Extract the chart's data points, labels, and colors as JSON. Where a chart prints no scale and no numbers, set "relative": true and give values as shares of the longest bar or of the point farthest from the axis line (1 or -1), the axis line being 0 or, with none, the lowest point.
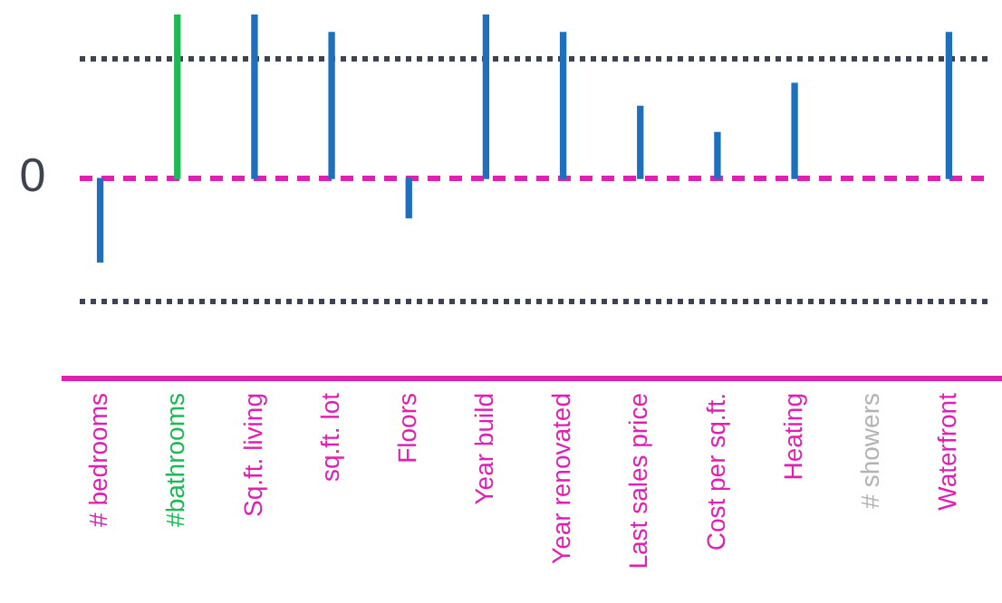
{
  "chart_data": {
    "type": "bar",
    "relative": true,
    "categories": [
      "# bedrooms",
      "#bathrooms",
      "Sq.ft. living",
      "sq.ft. lot",
      "Floors",
      "Year build",
      "Year renovated",
      "Last sales price",
      "Cost per sq.ft.",
      "Heating",
      "# showers",
      "Waterfront"
    ],
    "series": [
      {
        "color": "#1f6fbf",
        "colors": [
          "#1f6fbf",
          "#1db954",
          "#1f6fbf",
          "#1f6fbf",
          "#1f6fbf",
          "#1f6fbf",
          "#1f6fbf",
          "#1f6fbf",
          "#1f6fbf",
          "#1f6fbf",
          "#b3b3b3",
          "#1f6fbf"
        ],
        "values": [
          -0.51,
          1,
          1,
          0.89,
          -0.24,
          1,
          0.89,
          0.44,
          0.28,
          0.58,
          null,
          0.89
        ]
      }
    ],
    "ref_lines": [
      {
        "axis": "y",
        "value": 0,
        "label": "0",
        "color": "#e020b0",
        "line_style": "dashed"
      },
      {
        "axis": "y",
        "value": 0.73,
        "color": "#3d4450",
        "line_style": "dotted"
      },
      {
        "axis": "y",
        "value": -0.75,
        "color": "#3d4450",
        "line_style": "dotted"
      }
    ],
    "grid": false,
    "legend": false
  }
}
